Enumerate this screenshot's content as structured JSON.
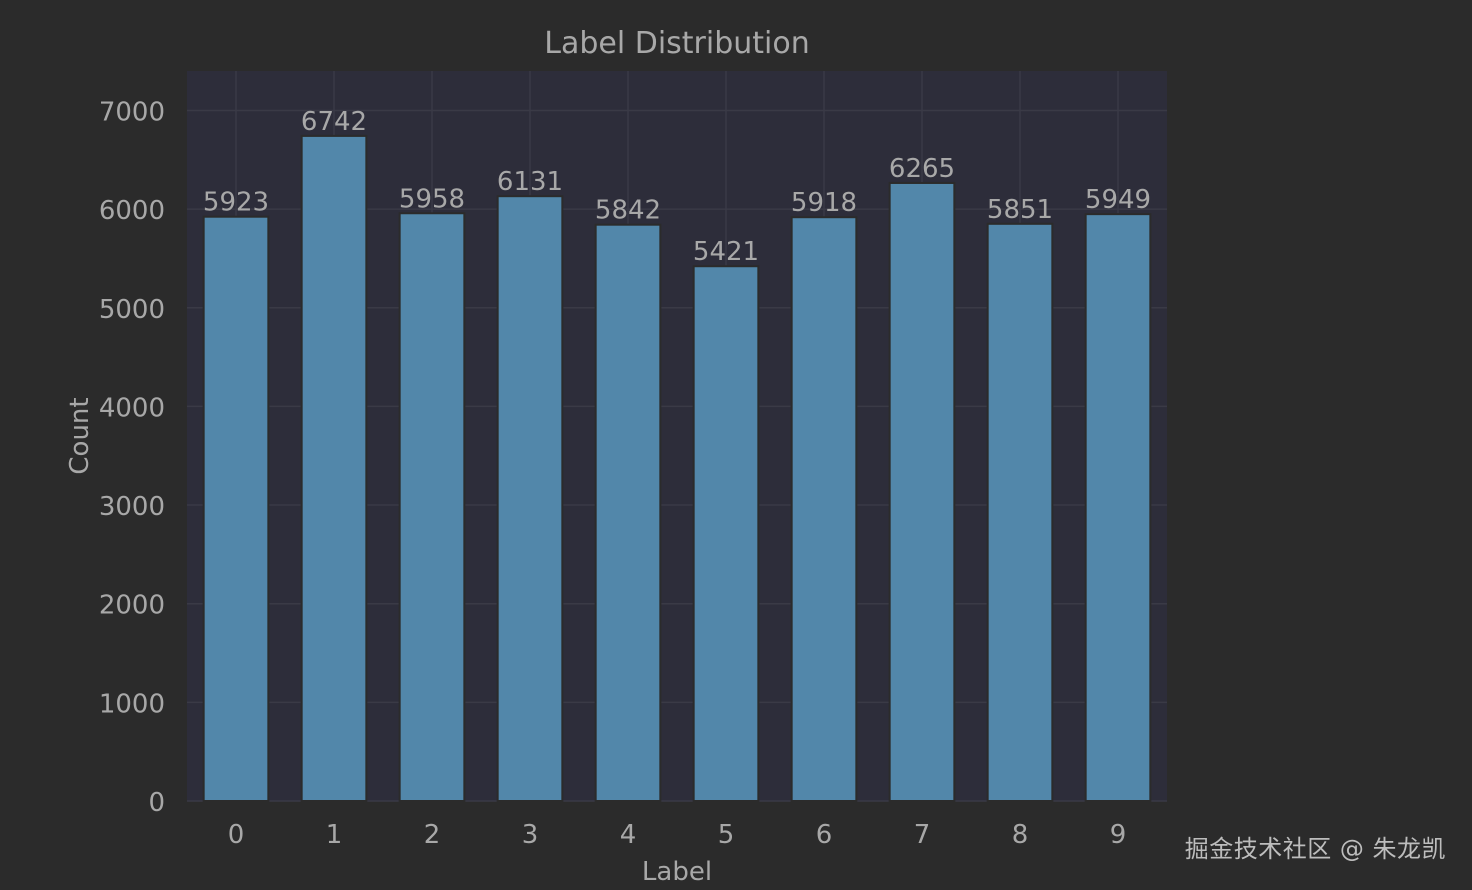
{
  "chart_data": {
    "type": "bar",
    "title": "Label Distribution",
    "xlabel": "Label",
    "ylabel": "Count",
    "categories": [
      "0",
      "1",
      "2",
      "3",
      "4",
      "5",
      "6",
      "7",
      "8",
      "9"
    ],
    "values": [
      5923,
      6742,
      5958,
      6131,
      5842,
      5421,
      5918,
      6265,
      5851,
      5949
    ],
    "data_labels": [
      "5923",
      "6742",
      "5958",
      "6131",
      "5842",
      "5421",
      "5918",
      "6265",
      "5851",
      "5949"
    ],
    "ylim": [
      0,
      7400
    ],
    "yticks": [
      0,
      1000,
      2000,
      3000,
      4000,
      5000,
      6000,
      7000
    ],
    "ytick_labels": [
      "0",
      "1000",
      "2000",
      "3000",
      "4000",
      "5000",
      "6000",
      "7000"
    ],
    "grid": true,
    "colors": {
      "figure_bg": "#2b2b2b",
      "axes_bg": "#2d2d3a",
      "bar": "#5287aa",
      "bar_edge": "#2b2b2b",
      "grid": "#3a3a46",
      "text": "#a8a8a8"
    }
  },
  "watermark": "掘金技术社区 @ 朱龙凯"
}
